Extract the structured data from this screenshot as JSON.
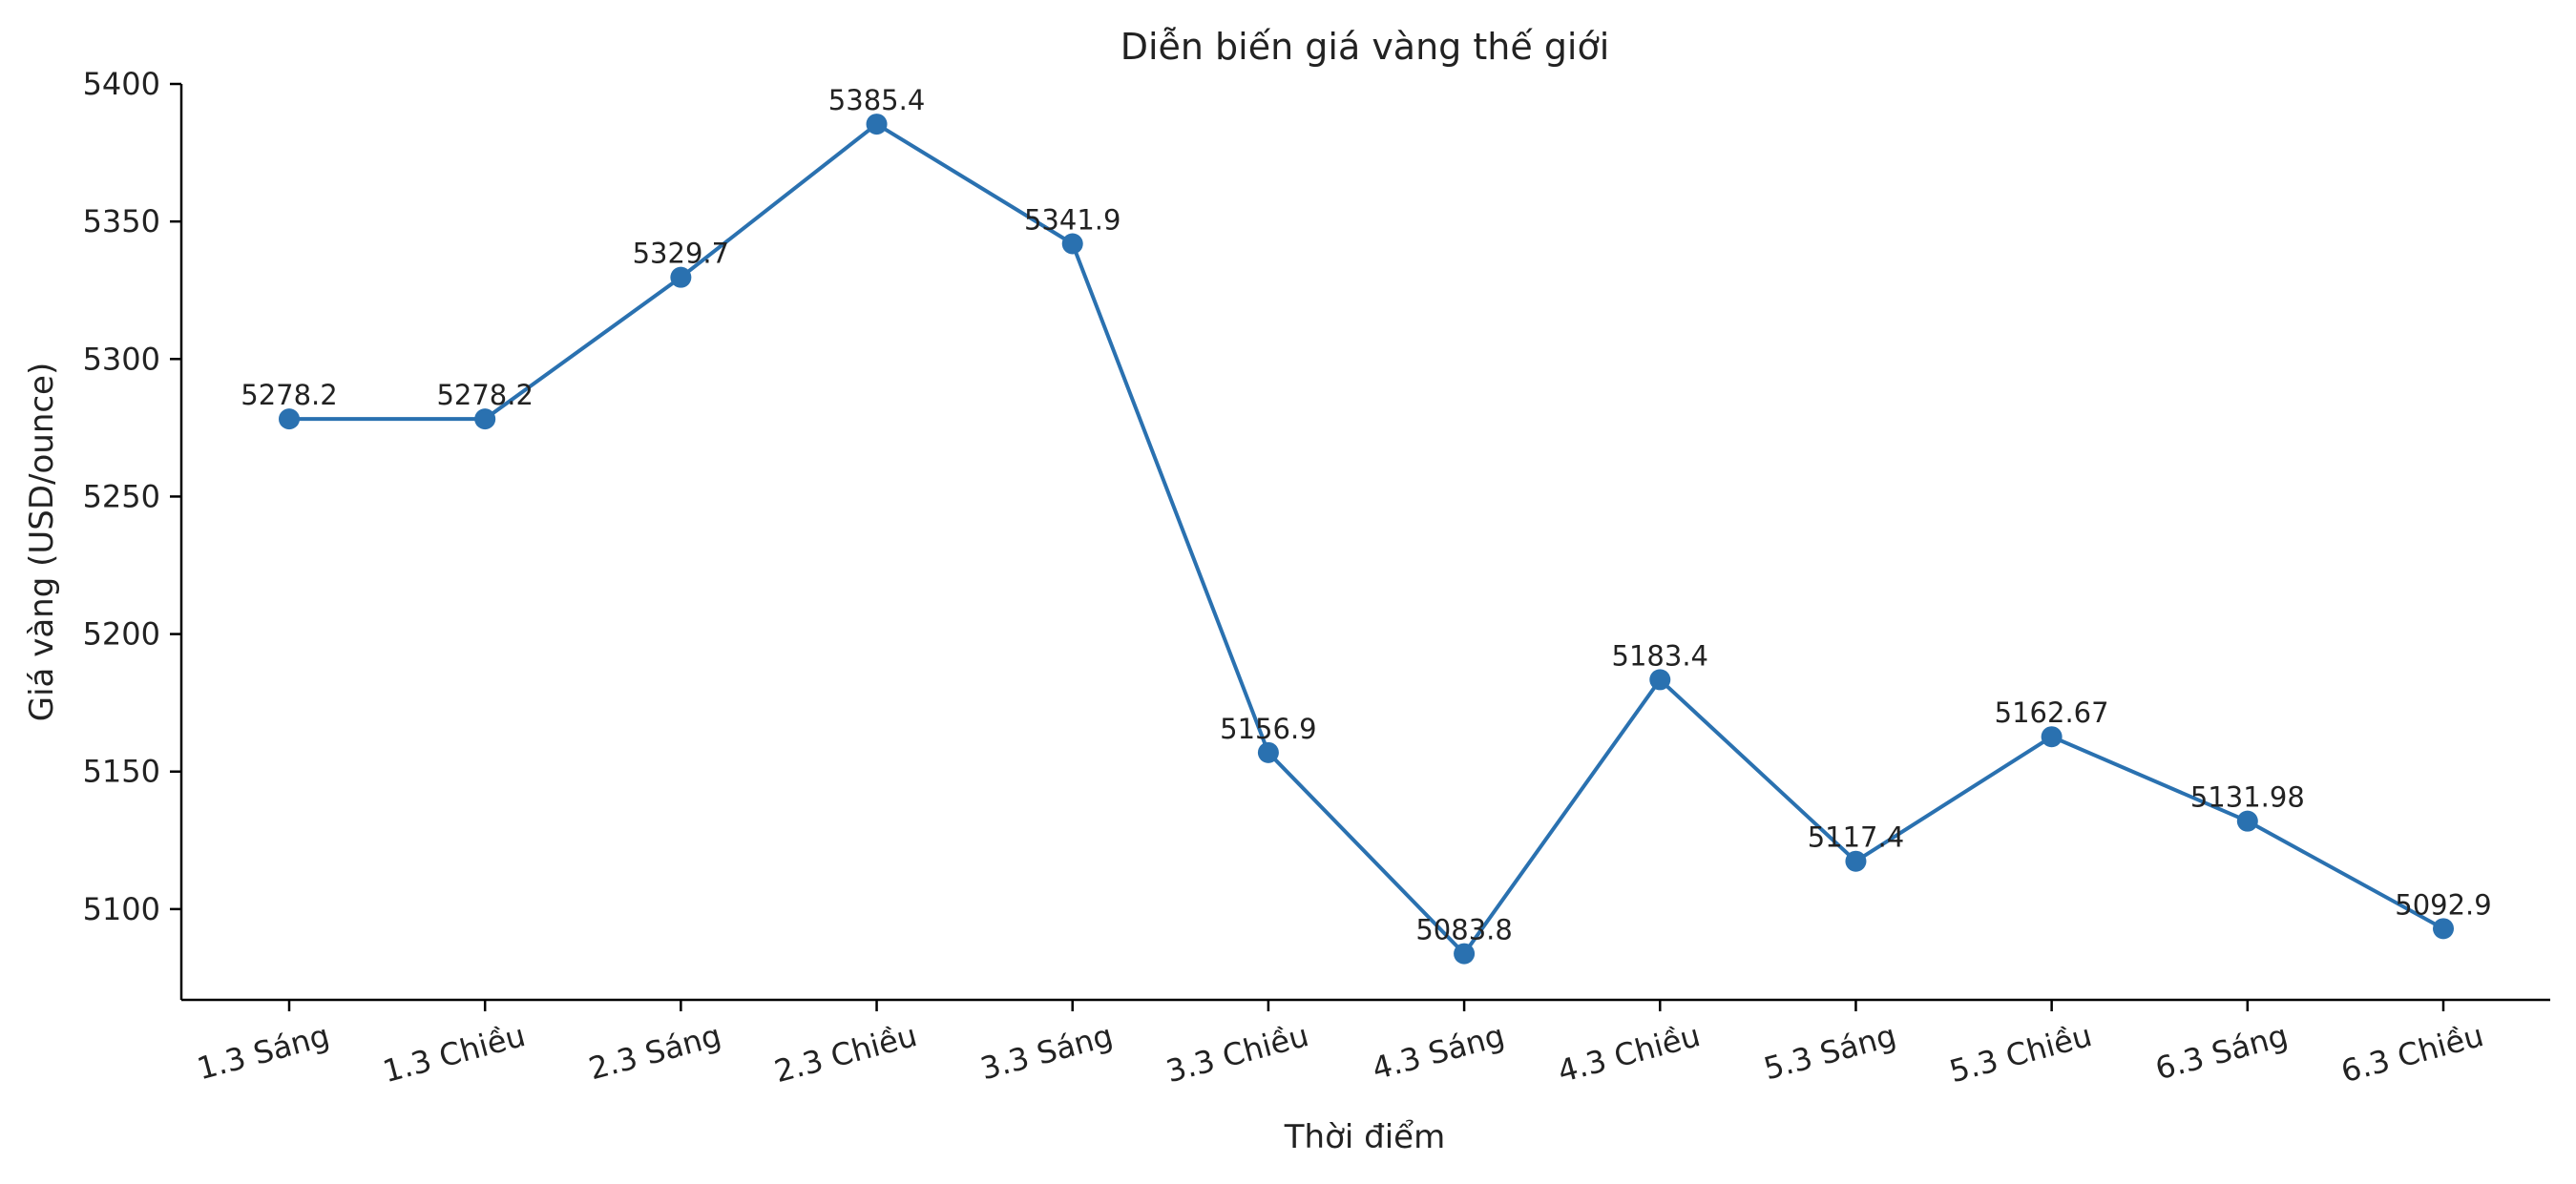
{
  "chart_data": {
    "type": "line",
    "title": "Diễn biến giá vàng thế giới",
    "xlabel": "Thời điểm",
    "ylabel": "Giá vàng (USD/ounce)",
    "categories": [
      "1.3 Sáng",
      "1.3 Chiều",
      "2.3 Sáng",
      "2.3 Chiều",
      "3.3 Sáng",
      "3.3 Chiều",
      "4.3 Sáng",
      "4.3 Chiều",
      "5.3 Sáng",
      "5.3 Chiều",
      "6.3 Sáng",
      "6.3 Chiều"
    ],
    "values": [
      5278.2,
      5278.2,
      5329.7,
      5385.4,
      5341.9,
      5156.9,
      5083.8,
      5183.4,
      5117.4,
      5162.67,
      5131.98,
      5092.9
    ],
    "value_labels": [
      "5278.2",
      "5278.2",
      "5329.7",
      "5385.4",
      "5341.9",
      "5156.9",
      "5083.8",
      "5183.4",
      "5117.4",
      "5162.67",
      "5131.98",
      "5092.9"
    ],
    "yticks": [
      5100,
      5150,
      5200,
      5250,
      5300,
      5350,
      5400
    ],
    "ylim": [
      5067,
      5400
    ],
    "grid": false,
    "legend": "none",
    "color": "#2a71b0"
  }
}
